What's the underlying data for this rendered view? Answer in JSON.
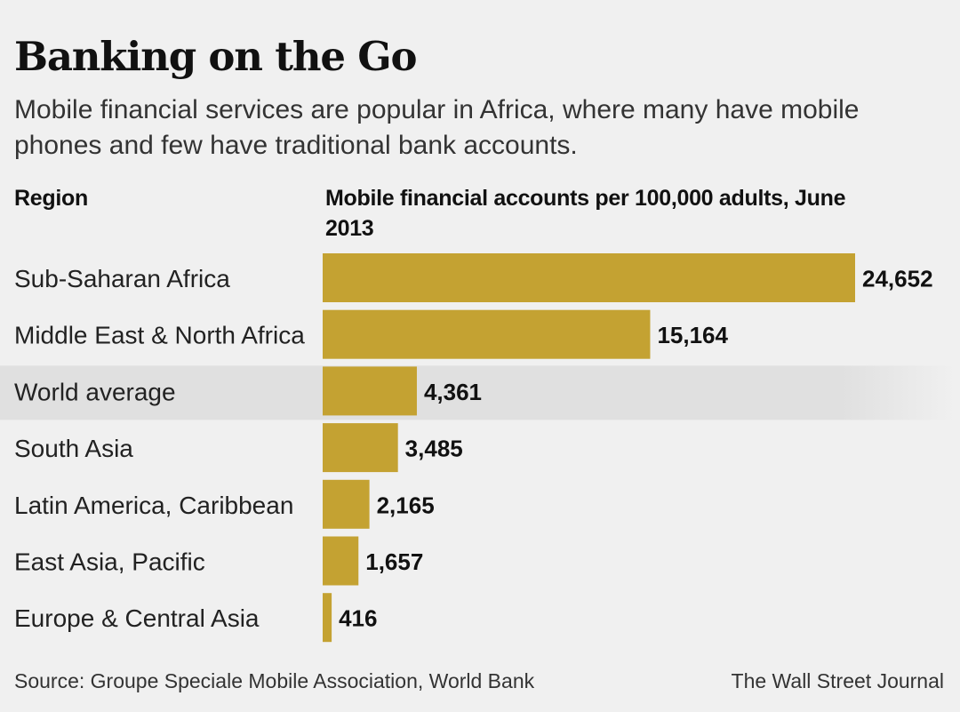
{
  "header": {
    "title": "Banking on the Go",
    "subtitle": "Mobile financial services are popular in Africa, where many have mobile phones and few have traditional bank accounts."
  },
  "columns": {
    "region": "Region",
    "value": "Mobile financial accounts per 100,000 adults, June 2013"
  },
  "chart_data": {
    "type": "bar",
    "orientation": "horizontal",
    "categories": [
      "Sub-Saharan Africa",
      "Middle East & North Africa",
      "World average",
      "South Asia",
      "Latin America, Caribbean",
      "East Asia, Pacific",
      "Europe & Central Asia"
    ],
    "values": [
      24652,
      15164,
      4361,
      3485,
      2165,
      1657,
      416
    ],
    "value_labels": [
      "24,652",
      "15,164",
      "4,361",
      "3,485",
      "2,165",
      "1,657",
      "416"
    ],
    "highlighted_category": "World average",
    "xlim": [
      0,
      24652
    ],
    "grid": false,
    "legend": "none"
  },
  "footer": {
    "source": "Source: Groupe Speciale Mobile Association, World Bank",
    "credit": "The Wall Street Journal"
  },
  "colors": {
    "bar": "#c4a232",
    "background": "#f0f0f0",
    "highlight_row": "#e0e0e0",
    "text": "#1a1a1a"
  }
}
